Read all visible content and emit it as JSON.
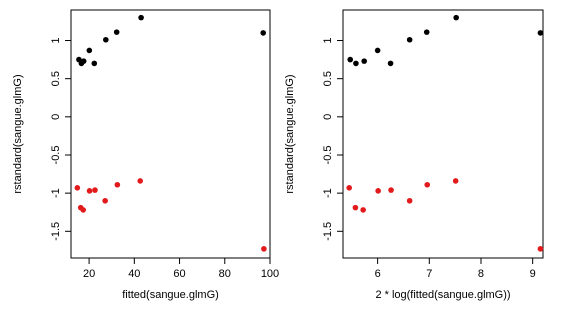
{
  "chart_data": [
    {
      "type": "scatter",
      "xlabel": "fitted(sangue.glmG)",
      "ylabel": "rstandard(sangue.glmG)",
      "xlim": [
        12,
        100
      ],
      "ylim": [
        -1.85,
        1.4
      ],
      "xticks": [
        20,
        40,
        60,
        80,
        100
      ],
      "yticks": [
        -1.5,
        -1.0,
        -0.5,
        0.0,
        0.5,
        1.0
      ],
      "grid": false,
      "series": [
        {
          "color": "#000000",
          "points": [
            [
              15.5,
              0.75
            ],
            [
              16.6,
              0.7
            ],
            [
              17.6,
              0.73
            ],
            [
              20.1,
              0.87
            ],
            [
              22.3,
              0.7
            ],
            [
              27.4,
              1.01
            ],
            [
              32.2,
              1.11
            ],
            [
              43.0,
              1.3
            ],
            [
              97.0,
              1.1
            ]
          ]
        },
        {
          "color": "#e31a1c",
          "points": [
            [
              14.8,
              -0.93
            ],
            [
              16.3,
              -1.19
            ],
            [
              17.4,
              -1.22
            ],
            [
              20.2,
              -0.97
            ],
            [
              22.6,
              -0.96
            ],
            [
              27.1,
              -1.1
            ],
            [
              32.5,
              -0.89
            ],
            [
              42.6,
              -0.84
            ],
            [
              97.3,
              -1.73
            ]
          ]
        }
      ]
    },
    {
      "type": "scatter",
      "xlabel": "2 * log(fitted(sangue.glmG))",
      "ylabel": "rstandard(sangue.glmG)",
      "xlim": [
        5.33,
        9.2
      ],
      "ylim": [
        -1.85,
        1.4
      ],
      "xticks": [
        6,
        7,
        8,
        9
      ],
      "yticks": [
        -1.5,
        -1.0,
        -0.5,
        0.0,
        0.5,
        1.0
      ],
      "grid": false,
      "series": [
        {
          "color": "#000000",
          "points": [
            [
              5.47,
              0.75
            ],
            [
              5.58,
              0.7
            ],
            [
              5.74,
              0.73
            ],
            [
              6.0,
              0.87
            ],
            [
              6.25,
              0.7
            ],
            [
              6.62,
              1.01
            ],
            [
              6.95,
              1.11
            ],
            [
              7.52,
              1.3
            ],
            [
              9.15,
              1.1
            ]
          ]
        },
        {
          "color": "#e31a1c",
          "points": [
            [
              5.45,
              -0.93
            ],
            [
              5.57,
              -1.19
            ],
            [
              5.72,
              -1.22
            ],
            [
              6.01,
              -0.97
            ],
            [
              6.26,
              -0.96
            ],
            [
              6.62,
              -1.1
            ],
            [
              6.96,
              -0.89
            ],
            [
              7.51,
              -0.84
            ],
            [
              9.15,
              -1.73
            ]
          ]
        }
      ]
    }
  ]
}
